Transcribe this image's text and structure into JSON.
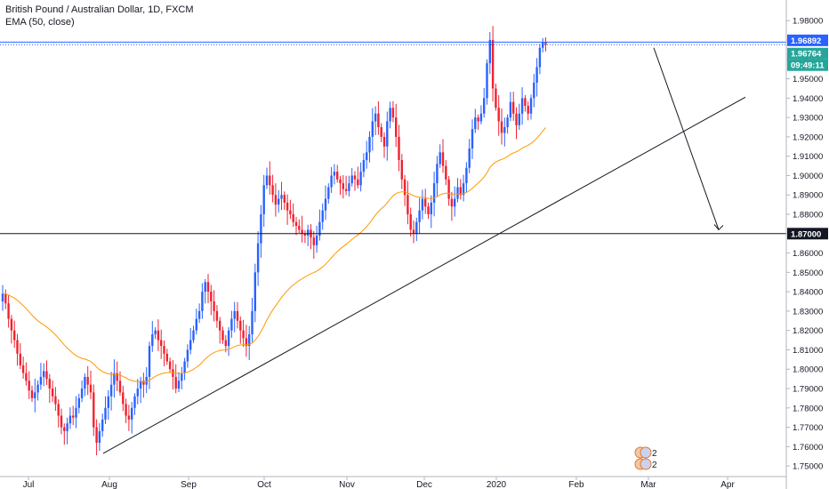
{
  "legend": {
    "symbol_line": "British Pound / Australian Dollar, 1D, FXCM",
    "indicator_line": "EMA (50, close)"
  },
  "price_tags": {
    "upper": "1.96892",
    "last": "1.96764",
    "countdown": "09:49:11",
    "level": "1.87000"
  },
  "colors": {
    "up": "#2962ff",
    "down": "#f0222f",
    "ema": "#ff9800",
    "tag_blue": "#2962ff",
    "tag_green": "#26a69a",
    "tag_dark": "#131722"
  },
  "event_badges": [
    "2",
    "2"
  ],
  "chart_data": {
    "type": "candlestick",
    "title": "British Pound / Australian Dollar, 1D, FXCM",
    "indicator": "EMA (50, close)",
    "x_tick_labels": [
      "Jul",
      "Aug",
      "Sep",
      "Oct",
      "Nov",
      "Dec",
      "2020",
      "Feb",
      "Mar",
      "Apr"
    ],
    "y_ticks": [
      1.75,
      1.76,
      1.77,
      1.78,
      1.79,
      1.8,
      1.81,
      1.82,
      1.83,
      1.84,
      1.85,
      1.86,
      1.87,
      1.88,
      1.89,
      1.9,
      1.91,
      1.92,
      1.93,
      1.94,
      1.95,
      1.96,
      1.97,
      1.98
    ],
    "y_tick_labels": [
      "1.75000",
      "1.76000",
      "1.77000",
      "1.78000",
      "1.79000",
      "1.80000",
      "1.81000",
      "1.82000",
      "1.83000",
      "1.84000",
      "1.85000",
      "1.86000",
      "1.87000",
      "1.88000",
      "1.89000",
      "1.90000",
      "1.91000",
      "1.92000",
      "1.93000",
      "1.94000",
      "1.95000",
      "1.96000",
      "1.97000",
      "1.98000"
    ],
    "ylim": [
      1.745,
      1.987
    ],
    "grid": false,
    "horizontal_levels": [
      1.96892,
      1.87
    ],
    "trendline": {
      "from": {
        "date": "2019-07-26",
        "value": 1.7565
      },
      "to": {
        "date": "2020-03-04",
        "value": 1.9405
      }
    },
    "projection_arrow": {
      "from": {
        "date": "2020-02-24",
        "value": 1.966
      },
      "to": {
        "date": "2020-03-14",
        "value": 1.872
      }
    },
    "closes": [
      1.839,
      1.834,
      1.826,
      1.82,
      1.815,
      1.808,
      1.802,
      1.798,
      1.794,
      1.789,
      1.785,
      1.788,
      1.792,
      1.796,
      1.799,
      1.795,
      1.79,
      1.786,
      1.782,
      1.776,
      1.77,
      1.768,
      1.772,
      1.776,
      1.775,
      1.78,
      1.785,
      1.79,
      1.796,
      1.792,
      1.788,
      1.77,
      1.762,
      1.768,
      1.774,
      1.78,
      1.786,
      1.792,
      1.798,
      1.794,
      1.788,
      1.782,
      1.776,
      1.774,
      1.78,
      1.786,
      1.79,
      1.794,
      1.792,
      1.796,
      1.812,
      1.818,
      1.82,
      1.815,
      1.812,
      1.808,
      1.804,
      1.8,
      1.796,
      1.79,
      1.794,
      1.798,
      1.804,
      1.81,
      1.815,
      1.82,
      1.826,
      1.83,
      1.84,
      1.845,
      1.84,
      1.835,
      1.83,
      1.825,
      1.82,
      1.815,
      1.812,
      1.82,
      1.826,
      1.83,
      1.825,
      1.82,
      1.816,
      1.812,
      1.818,
      1.83,
      1.85,
      1.865,
      1.88,
      1.895,
      1.9,
      1.895,
      1.89,
      1.885,
      1.888,
      1.89,
      1.886,
      1.882,
      1.88,
      1.876,
      1.874,
      1.872,
      1.87,
      1.869,
      1.872,
      1.868,
      1.864,
      1.869,
      1.876,
      1.882,
      1.888,
      1.894,
      1.9,
      1.902,
      1.898,
      1.896,
      1.893,
      1.892,
      1.896,
      1.9,
      1.898,
      1.895,
      1.902,
      1.908,
      1.912,
      1.92,
      1.928,
      1.932,
      1.925,
      1.92,
      1.915,
      1.928,
      1.935,
      1.93,
      1.92,
      1.908,
      1.898,
      1.89,
      1.88,
      1.872,
      1.87,
      1.876,
      1.882,
      1.888,
      1.884,
      1.88,
      1.886,
      1.896,
      1.906,
      1.912,
      1.905,
      1.898,
      1.888,
      1.884,
      1.888,
      1.894,
      1.89,
      1.896,
      1.904,
      1.914,
      1.924,
      1.93,
      1.928,
      1.932,
      1.94,
      1.958,
      1.97,
      1.945,
      1.935,
      1.928,
      1.922,
      1.925,
      1.93,
      1.938,
      1.932,
      1.926,
      1.932,
      1.94,
      1.936,
      1.932,
      1.94,
      1.948,
      1.956,
      1.966,
      1.969,
      1.9676
    ]
  }
}
